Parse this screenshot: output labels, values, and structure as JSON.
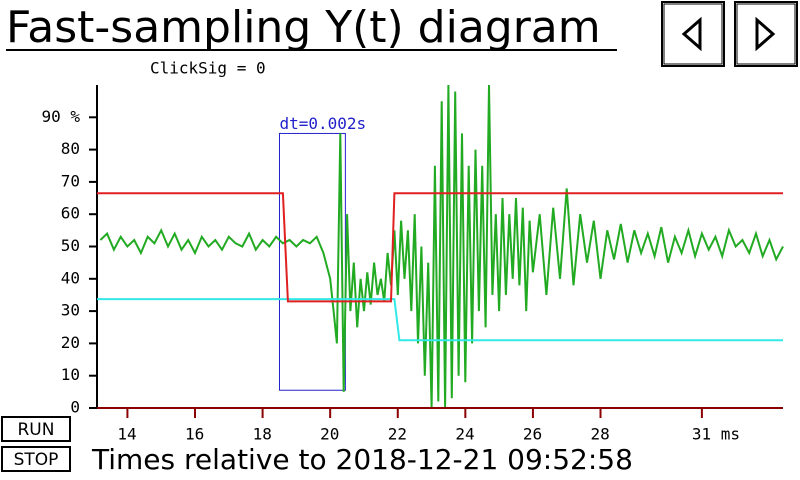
{
  "title": "Fast-sampling Y(t) diagram",
  "status": "ClickSig = 0",
  "buttons": {
    "run": "RUN",
    "stop": "STOP"
  },
  "footer": "Times relative to 2018-12-21 09:52:58",
  "chart_data": {
    "type": "line",
    "xlim": [
      13.1,
      33.4
    ],
    "ylim": [
      0,
      100
    ],
    "xticks": [
      14,
      16,
      18,
      20,
      22,
      24,
      26,
      28,
      {
        "value": 31,
        "label": "31 ms"
      }
    ],
    "yticks": [
      0,
      10,
      20,
      30,
      40,
      50,
      60,
      70,
      80,
      {
        "value": 90,
        "label": "90 %"
      }
    ],
    "annotation": {
      "text": "dt=0.002s",
      "x": [
        18.5,
        20.45
      ],
      "y": [
        5.5,
        85
      ],
      "color": "#2222cc"
    },
    "series": [
      {
        "color": "#e02020",
        "x": [
          13.1,
          18.6,
          18.75,
          21.8,
          21.9,
          33.4
        ],
        "values": [
          66.5,
          66.5,
          33,
          33,
          66.5,
          66.5
        ]
      },
      {
        "color": "#33e8e8",
        "x": [
          13.1,
          21.9,
          22.05,
          33.4
        ],
        "values": [
          33.7,
          33.7,
          21,
          21
        ]
      },
      {
        "color": "#22aa22",
        "x": [
          13.2,
          13.4,
          13.6,
          13.8,
          14.0,
          14.2,
          14.4,
          14.6,
          14.8,
          15.0,
          15.2,
          15.4,
          15.6,
          15.8,
          16.0,
          16.2,
          16.4,
          16.6,
          16.8,
          17.0,
          17.2,
          17.4,
          17.6,
          17.8,
          18.0,
          18.2,
          18.4,
          18.6,
          18.8,
          19.0,
          19.2,
          19.4,
          19.6,
          19.8,
          20.0,
          20.1,
          20.2,
          20.3,
          20.4,
          20.5,
          20.6,
          20.7,
          20.8,
          20.9,
          21.0,
          21.1,
          21.2,
          21.3,
          21.4,
          21.5,
          21.6,
          21.7,
          21.8,
          21.9,
          22.0,
          22.1,
          22.2,
          22.3,
          22.4,
          22.5,
          22.6,
          22.7,
          22.8,
          22.9,
          23.0,
          23.1,
          23.2,
          23.3,
          23.4,
          23.5,
          23.6,
          23.7,
          23.8,
          23.9,
          24.0,
          24.1,
          24.2,
          24.3,
          24.4,
          24.5,
          24.6,
          24.7,
          24.8,
          24.9,
          25.0,
          25.1,
          25.2,
          25.3,
          25.4,
          25.5,
          25.6,
          25.7,
          25.8,
          25.9,
          26.0,
          26.2,
          26.4,
          26.6,
          26.8,
          27.0,
          27.2,
          27.4,
          27.6,
          27.8,
          28.0,
          28.2,
          28.4,
          28.6,
          28.8,
          29.0,
          29.2,
          29.4,
          29.6,
          29.8,
          30.0,
          30.2,
          30.4,
          30.6,
          30.8,
          31.0,
          31.2,
          31.4,
          31.6,
          31.8,
          32.0,
          32.2,
          32.4,
          32.6,
          32.8,
          33.0,
          33.2,
          33.4
        ],
        "values": [
          52,
          54,
          49,
          53,
          50,
          52,
          48,
          53,
          51,
          55,
          50,
          54,
          49,
          52,
          48,
          53,
          50,
          52,
          49,
          53,
          51,
          50,
          54,
          49,
          52,
          50,
          53,
          51,
          52,
          50,
          52,
          51,
          53,
          48,
          40,
          30,
          20,
          85,
          5,
          60,
          30,
          45,
          25,
          40,
          30,
          42,
          32,
          45,
          35,
          40,
          33,
          48,
          38,
          55,
          35,
          58,
          40,
          55,
          30,
          60,
          20,
          50,
          10,
          45,
          0,
          75,
          2,
          95,
          0,
          100,
          3,
          98,
          10,
          85,
          8,
          75,
          20,
          80,
          30,
          75,
          25,
          100,
          35,
          60,
          30,
          65,
          35,
          60,
          40,
          65,
          38,
          62,
          30,
          58,
          42,
          60,
          35,
          62,
          40,
          68,
          38,
          60,
          45,
          58,
          40,
          55,
          46,
          57,
          45,
          55,
          48,
          54,
          47,
          56,
          45,
          53,
          48,
          55,
          47,
          54,
          49,
          53,
          47,
          55,
          50,
          52,
          48,
          54,
          47,
          52,
          46,
          50
        ]
      }
    ]
  }
}
